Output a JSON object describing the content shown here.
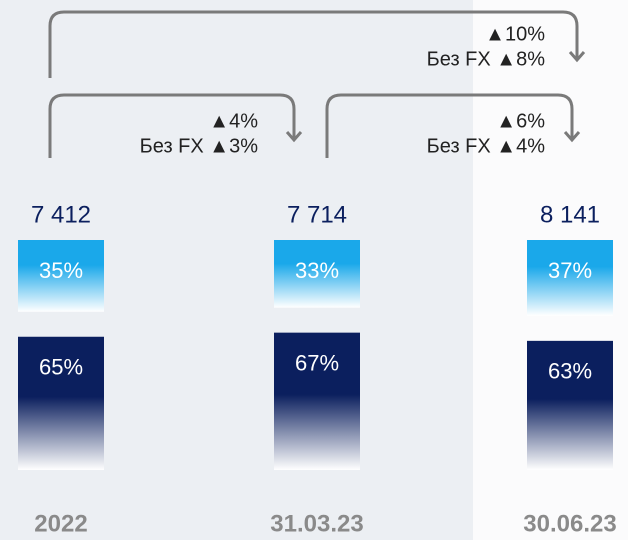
{
  "chart_data": {
    "type": "stacked_bar",
    "categories": [
      "2022",
      "31.03.23",
      "30.06.23"
    ],
    "series": [
      {
        "color": "#1aa8ea",
        "values": [
          35,
          33,
          37
        ],
        "value_labels": [
          "35%",
          "33%",
          "37%"
        ]
      },
      {
        "color": "#0b1f5e",
        "values": [
          65,
          67,
          63
        ],
        "value_labels": [
          "65%",
          "67%",
          "63%"
        ]
      }
    ],
    "totals": {
      "values": [
        7412,
        7714,
        8141
      ],
      "value_labels": [
        "7 412",
        "7 714",
        "8 141"
      ]
    },
    "annotations": [
      {
        "lines": [
          "▲10%",
          "Без FX ▲8%"
        ]
      },
      {
        "lines": [
          "▲4%",
          "Без FX ▲3%"
        ]
      },
      {
        "lines": [
          "▲6%",
          "Без FX ▲4%"
        ]
      }
    ]
  }
}
